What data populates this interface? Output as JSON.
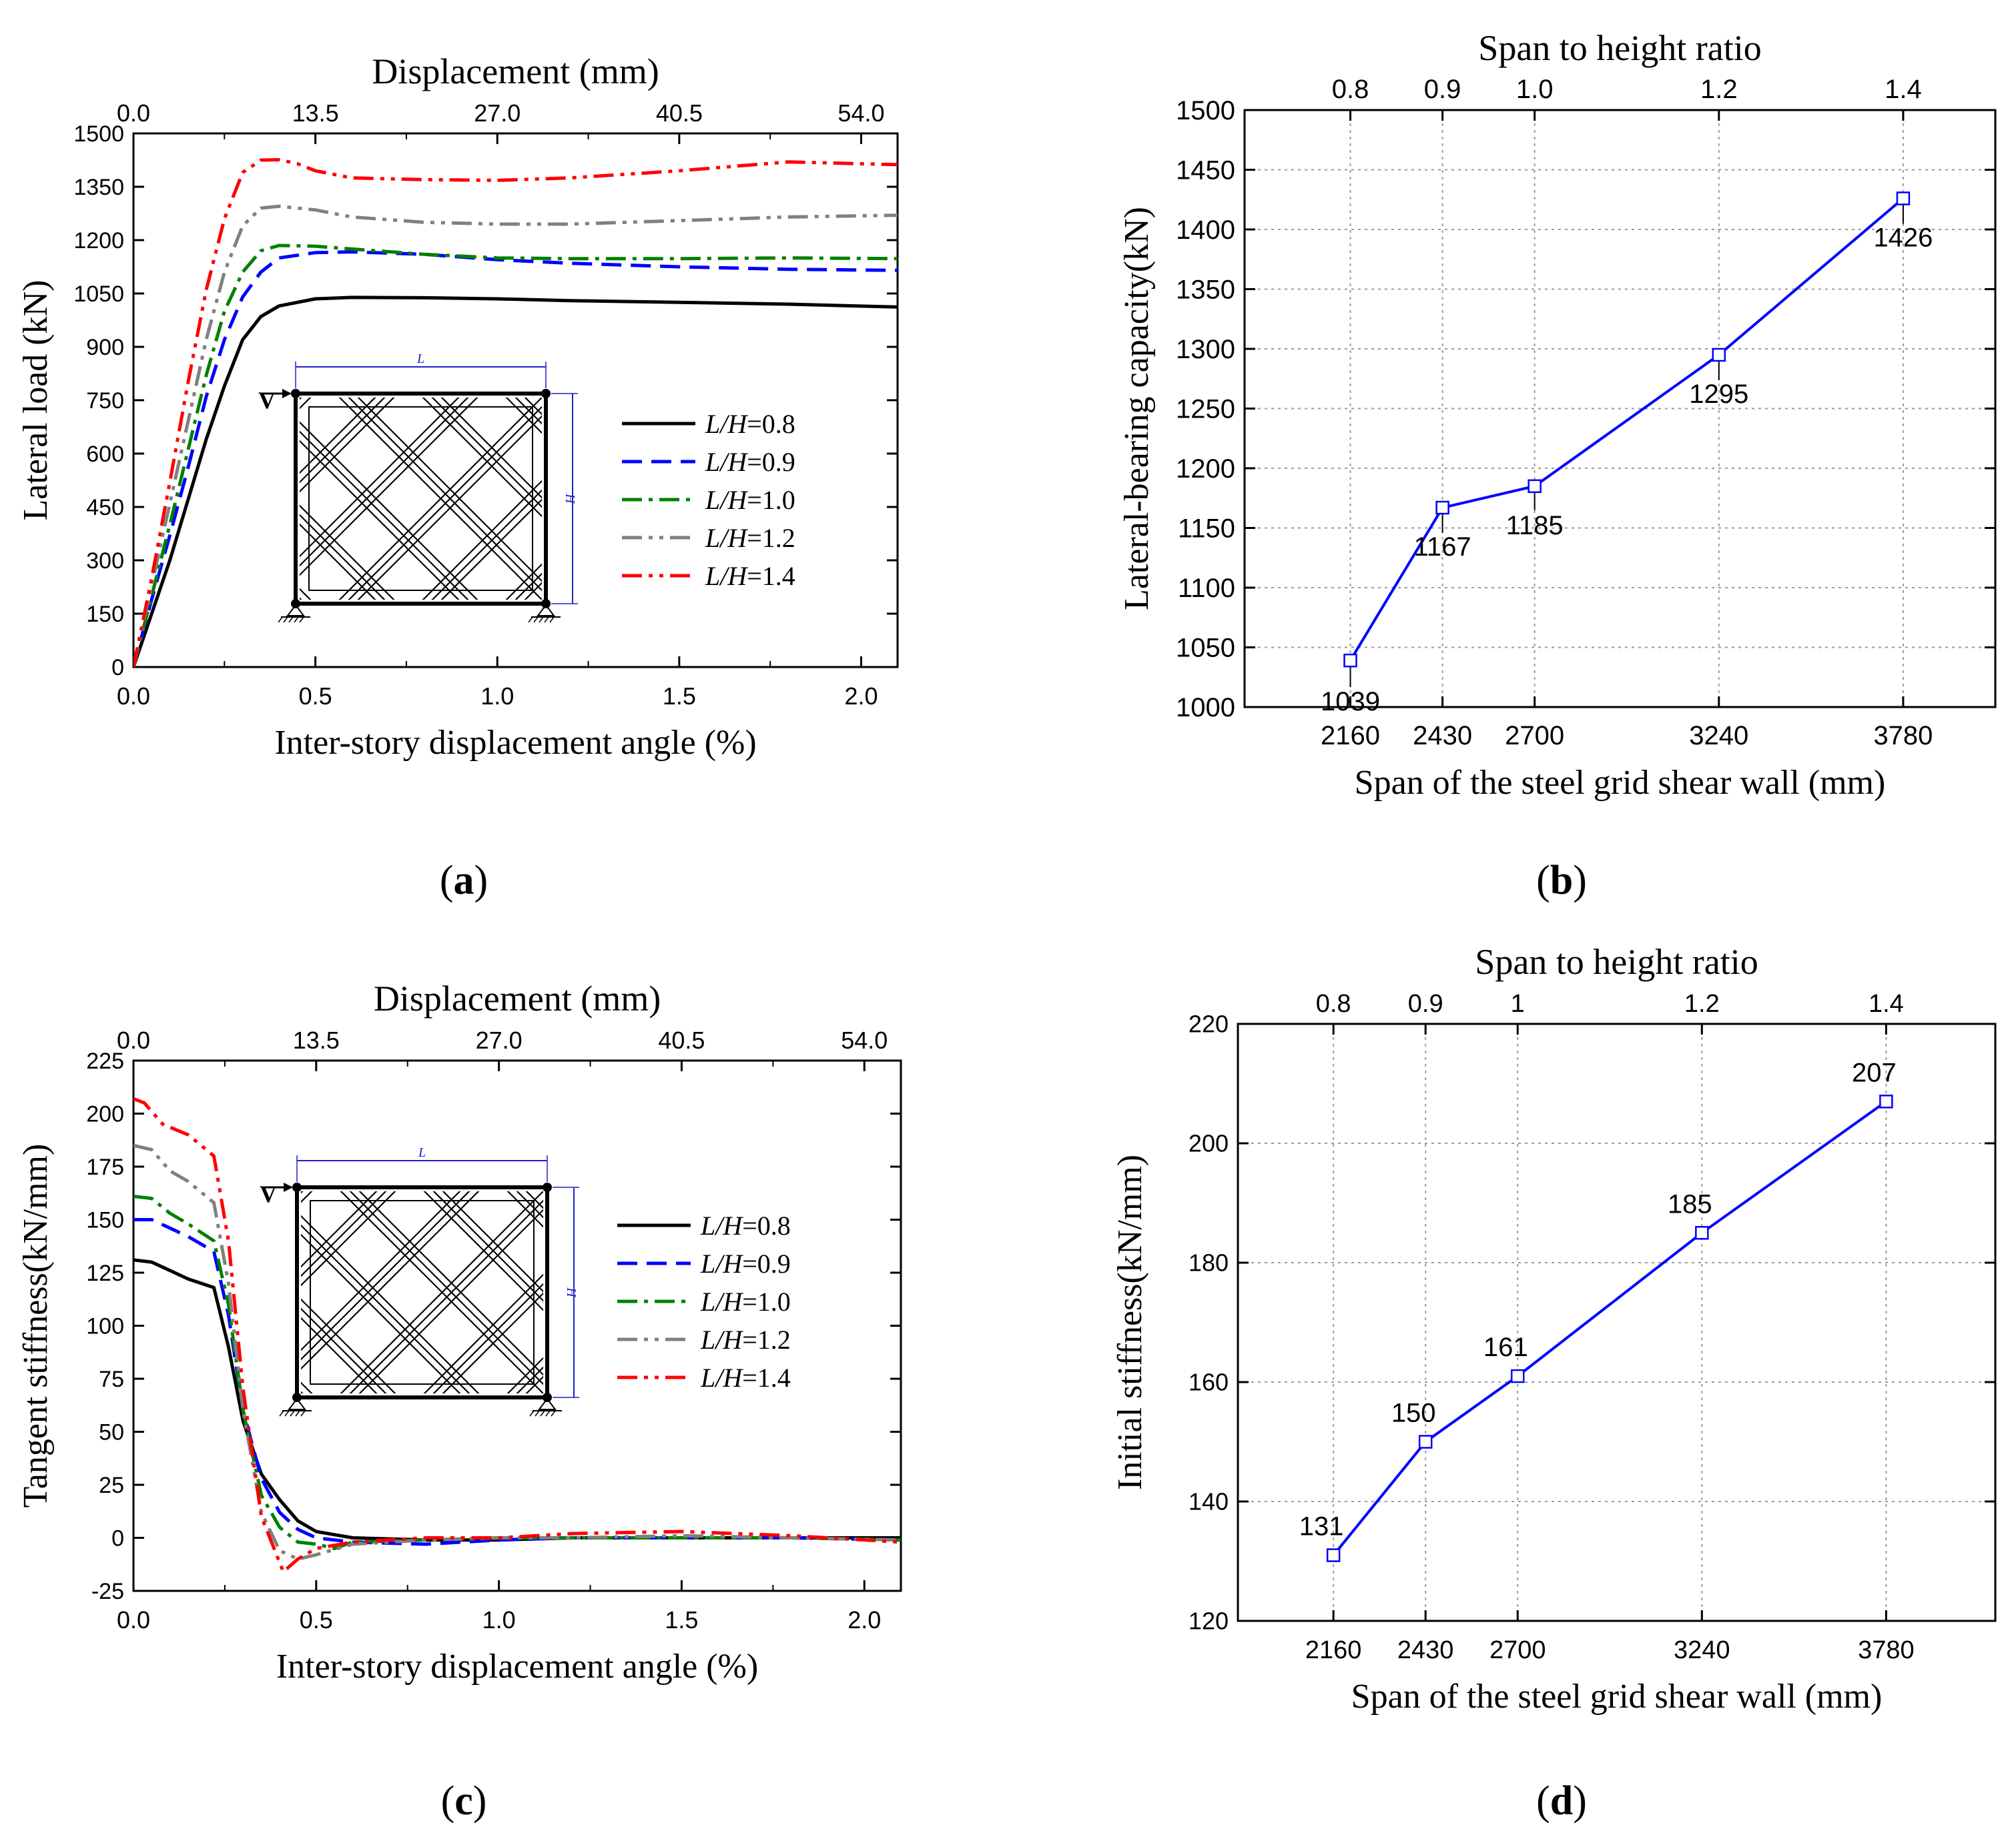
{
  "chart_data": [
    {
      "id": "a",
      "type": "line",
      "panel_label": "a",
      "xlabel": "Inter-story displacement angle (%)",
      "ylabel": "Lateral load (kN)",
      "top_axis": {
        "label": "Displacement (mm)",
        "ticks": [
          "0.0",
          "13.5",
          "27.0",
          "40.5",
          "54.0"
        ],
        "values": [
          0,
          0.5,
          1.0,
          1.5,
          2.0
        ]
      },
      "xlim": [
        0,
        2.1
      ],
      "ylim": [
        0,
        1500
      ],
      "xticks": [
        0,
        0.5,
        1.0,
        1.5,
        2.0
      ],
      "xtick_labels": [
        "0.0",
        "0.5",
        "1.0",
        "1.5",
        "2.0"
      ],
      "yticks": [
        0,
        150,
        300,
        450,
        600,
        750,
        900,
        1050,
        1200,
        1350,
        1500
      ],
      "grid": false,
      "legend": {
        "position": "right",
        "items": [
          {
            "italic": "L/H",
            "suffix": "=0.8"
          },
          {
            "italic": "L/H",
            "suffix": "=0.9"
          },
          {
            "italic": "L/H",
            "suffix": "=1.0"
          },
          {
            "italic": "L/H",
            "suffix": "=1.2"
          },
          {
            "italic": "L/H",
            "suffix": "=1.4"
          }
        ]
      },
      "inset": {
        "span_label": "L",
        "height_label": "H",
        "load_label": "V"
      },
      "series": [
        {
          "name": "L/H=0.8",
          "color": "#000000",
          "dash": "solid",
          "x": [
            0,
            0.05,
            0.1,
            0.15,
            0.2,
            0.25,
            0.3,
            0.35,
            0.4,
            0.5,
            0.6,
            0.8,
            1.0,
            1.2,
            1.5,
            1.8,
            2.1
          ],
          "y": [
            0,
            150,
            300,
            470,
            640,
            790,
            920,
            985,
            1015,
            1035,
            1039,
            1038,
            1035,
            1030,
            1025,
            1020,
            1012
          ]
        },
        {
          "name": "L/H=0.9",
          "color": "#0000ff",
          "dash": "dash",
          "x": [
            0,
            0.05,
            0.1,
            0.15,
            0.2,
            0.25,
            0.3,
            0.35,
            0.4,
            0.5,
            0.6,
            0.8,
            1.0,
            1.2,
            1.5,
            1.8,
            2.1
          ],
          "y": [
            0,
            190,
            370,
            560,
            760,
            920,
            1040,
            1110,
            1150,
            1165,
            1167,
            1160,
            1145,
            1135,
            1125,
            1118,
            1115
          ]
        },
        {
          "name": "L/H=1.0",
          "color": "#008000",
          "dash": "dashdot",
          "x": [
            0,
            0.05,
            0.1,
            0.15,
            0.2,
            0.25,
            0.3,
            0.35,
            0.4,
            0.5,
            0.6,
            0.8,
            1.0,
            1.2,
            1.5,
            1.8,
            2.1
          ],
          "y": [
            0,
            200,
            400,
            610,
            820,
            1000,
            1110,
            1170,
            1185,
            1183,
            1175,
            1160,
            1150,
            1148,
            1148,
            1150,
            1148
          ]
        },
        {
          "name": "L/H=1.2",
          "color": "#808080",
          "dash": "dashdotdot",
          "x": [
            0,
            0.05,
            0.1,
            0.15,
            0.2,
            0.25,
            0.3,
            0.35,
            0.4,
            0.5,
            0.6,
            0.8,
            1.0,
            1.2,
            1.5,
            1.8,
            2.1
          ],
          "y": [
            0,
            230,
            460,
            690,
            920,
            1110,
            1240,
            1290,
            1295,
            1285,
            1265,
            1250,
            1245,
            1245,
            1255,
            1265,
            1270
          ]
        },
        {
          "name": "L/H=1.4",
          "color": "#ff0000",
          "dash": "dashdotdot",
          "x": [
            0,
            0.05,
            0.1,
            0.15,
            0.2,
            0.25,
            0.3,
            0.35,
            0.4,
            0.45,
            0.5,
            0.6,
            0.8,
            1.0,
            1.2,
            1.5,
            1.8,
            2.1
          ],
          "y": [
            0,
            250,
            520,
            800,
            1060,
            1260,
            1390,
            1425,
            1426,
            1415,
            1395,
            1375,
            1370,
            1368,
            1375,
            1395,
            1420,
            1412
          ]
        }
      ]
    },
    {
      "id": "b",
      "type": "line",
      "panel_label": "b",
      "xlabel": "Span of the steel grid shear wall (mm)",
      "ylabel": "Lateral-bearing capacity(kN)",
      "top_axis": {
        "label": "Span to height ratio",
        "ticks": [
          "0.8",
          "0.9",
          "1.0",
          "1.2",
          "1.4"
        ],
        "values": [
          2160,
          2430,
          2700,
          3240,
          3780
        ]
      },
      "xlim": [
        1850,
        4050
      ],
      "ylim": [
        1000,
        1500
      ],
      "xticks": [
        2160,
        2430,
        2700,
        3240,
        3780
      ],
      "xtick_labels": [
        "2160",
        "2430",
        "2700",
        "3240",
        "3780"
      ],
      "yticks": [
        1000,
        1050,
        1100,
        1150,
        1200,
        1250,
        1300,
        1350,
        1400,
        1450,
        1500
      ],
      "grid": true,
      "color": "#0000ff",
      "x": [
        2160,
        2430,
        2700,
        3240,
        3780
      ],
      "y": [
        1039,
        1167,
        1185,
        1295,
        1426
      ],
      "point_labels": [
        "1039",
        "1167",
        "1185",
        "1295",
        "1426"
      ]
    },
    {
      "id": "c",
      "type": "line",
      "panel_label": "c",
      "xlabel": "Inter-story displacement angle (%)",
      "ylabel": "Tangent stiffness(kN/mm)",
      "top_axis": {
        "label": "Displacement (mm)",
        "ticks": [
          "0.0",
          "13.5",
          "27.0",
          "40.5",
          "54.0"
        ],
        "values": [
          0,
          0.5,
          1.0,
          1.5,
          2.0
        ]
      },
      "xlim": [
        0,
        2.1
      ],
      "ylim": [
        -25,
        225
      ],
      "xticks": [
        0,
        0.5,
        1.0,
        1.5,
        2.0
      ],
      "xtick_labels": [
        "0.0",
        "0.5",
        "1.0",
        "1.5",
        "2.0"
      ],
      "yticks": [
        -25,
        0,
        25,
        50,
        75,
        100,
        125,
        150,
        175,
        200,
        225
      ],
      "grid": false,
      "legend": {
        "position": "right",
        "items": [
          {
            "italic": "L/H",
            "suffix": "=0.8"
          },
          {
            "italic": "L/H",
            "suffix": "=0.9"
          },
          {
            "italic": "L/H",
            "suffix": "=1.0"
          },
          {
            "italic": "L/H",
            "suffix": "=1.2"
          },
          {
            "italic": "L/H",
            "suffix": "=1.4"
          }
        ]
      },
      "inset": {
        "span_label": "L",
        "height_label": "H",
        "load_label": "V"
      },
      "series": [
        {
          "name": "L/H=0.8",
          "color": "#000000",
          "dash": "solid",
          "x": [
            0,
            0.05,
            0.1,
            0.15,
            0.22,
            0.26,
            0.3,
            0.35,
            0.4,
            0.45,
            0.5,
            0.6,
            0.8,
            1.0,
            1.2,
            1.5,
            1.8,
            2.1
          ],
          "y": [
            131,
            130,
            126,
            122,
            118,
            90,
            55,
            30,
            18,
            8,
            3,
            0,
            -1,
            -1,
            0,
            0,
            0,
            0
          ]
        },
        {
          "name": "L/H=0.9",
          "color": "#0000ff",
          "dash": "dash",
          "x": [
            0,
            0.05,
            0.1,
            0.15,
            0.22,
            0.26,
            0.3,
            0.35,
            0.4,
            0.45,
            0.5,
            0.6,
            0.8,
            1.0,
            1.2,
            1.5,
            1.8,
            2.1
          ],
          "y": [
            150,
            150,
            146,
            142,
            135,
            105,
            60,
            28,
            12,
            4,
            0,
            -2,
            -3,
            -1,
            0,
            0,
            0,
            -1
          ]
        },
        {
          "name": "L/H=1.0",
          "color": "#008000",
          "dash": "dashdot",
          "x": [
            0,
            0.05,
            0.1,
            0.15,
            0.22,
            0.26,
            0.3,
            0.35,
            0.4,
            0.45,
            0.5,
            0.55,
            0.6,
            0.8,
            1.0,
            1.2,
            1.5,
            1.8,
            2.1
          ],
          "y": [
            161,
            160,
            153,
            148,
            140,
            110,
            60,
            20,
            5,
            -2,
            -3,
            -5,
            -2,
            -1,
            0,
            0,
            0,
            0,
            -1
          ]
        },
        {
          "name": "L/H=1.2",
          "color": "#808080",
          "dash": "dashdotdot",
          "x": [
            0,
            0.05,
            0.1,
            0.15,
            0.22,
            0.26,
            0.3,
            0.35,
            0.4,
            0.45,
            0.5,
            0.6,
            0.8,
            1.0,
            1.2,
            1.5,
            1.8,
            2.1
          ],
          "y": [
            185,
            183,
            173,
            168,
            158,
            120,
            60,
            12,
            -6,
            -10,
            -8,
            -3,
            -1,
            0,
            0,
            1,
            0,
            -1
          ]
        },
        {
          "name": "L/H=1.4",
          "color": "#ff0000",
          "dash": "dashdotdot",
          "x": [
            0,
            0.03,
            0.08,
            0.15,
            0.22,
            0.26,
            0.3,
            0.35,
            0.41,
            0.45,
            0.5,
            0.6,
            0.8,
            1.0,
            1.2,
            1.5,
            1.8,
            2.1
          ],
          "y": [
            207,
            205,
            195,
            190,
            180,
            140,
            70,
            10,
            -16,
            -10,
            -5,
            -2,
            0,
            0,
            2,
            3,
            1,
            -2
          ]
        }
      ]
    },
    {
      "id": "d",
      "type": "line",
      "panel_label": "d",
      "xlabel": "Span of the steel grid shear wall (mm)",
      "ylabel": "Initial stiffness(kN/mm)",
      "top_axis": {
        "label": "Span to height ratio",
        "ticks": [
          "0.8",
          "0.9",
          "1",
          "1.2",
          "1.4"
        ],
        "values": [
          2160,
          2430,
          2700,
          3240,
          3780
        ]
      },
      "xlim": [
        1880,
        4100
      ],
      "ylim": [
        120,
        220
      ],
      "xticks": [
        2160,
        2430,
        2700,
        3240,
        3780
      ],
      "xtick_labels": [
        "2160",
        "2430",
        "2700",
        "3240",
        "3780"
      ],
      "yticks": [
        120,
        140,
        160,
        180,
        200,
        220
      ],
      "grid": true,
      "color": "#0000ff",
      "x": [
        2160,
        2430,
        2700,
        3240,
        3780
      ],
      "y": [
        131,
        150,
        161,
        185,
        207
      ],
      "point_labels": [
        "131",
        "150",
        "161",
        "185",
        "207"
      ]
    }
  ]
}
